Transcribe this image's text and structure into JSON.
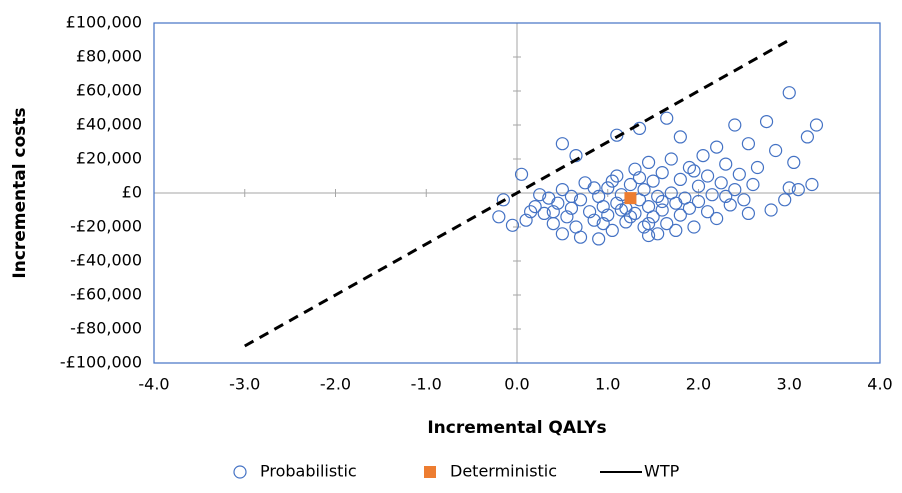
{
  "chart_data": {
    "type": "scatter",
    "x_label": "Incremental QALYs",
    "y_label": "Incremental  costs",
    "xlim": [
      -4,
      4
    ],
    "ylim": [
      -100000,
      100000
    ],
    "xticks": [
      {
        "value": -4,
        "label": "-4.0"
      },
      {
        "value": -3,
        "label": "-3.0"
      },
      {
        "value": -2,
        "label": "-2.0"
      },
      {
        "value": -1,
        "label": "-1.0"
      },
      {
        "value": 0,
        "label": "0.0"
      },
      {
        "value": 1,
        "label": "1.0"
      },
      {
        "value": 2,
        "label": "2.0"
      },
      {
        "value": 3,
        "label": "3.0"
      },
      {
        "value": 4,
        "label": "4.0"
      }
    ],
    "yticks": [
      {
        "value": -100000,
        "label": "-£100,000"
      },
      {
        "value": -80000,
        "label": "-£80,000"
      },
      {
        "value": -60000,
        "label": "-£60,000"
      },
      {
        "value": -40000,
        "label": "-£40,000"
      },
      {
        "value": -20000,
        "label": "-£20,000"
      },
      {
        "value": 0,
        "label": "£0"
      },
      {
        "value": 20000,
        "label": "£20,000"
      },
      {
        "value": 40000,
        "label": "£40,000"
      },
      {
        "value": 60000,
        "label": "£60,000"
      },
      {
        "value": 80000,
        "label": "£80,000"
      },
      {
        "value": 100000,
        "label": "£100,000"
      }
    ],
    "series": [
      {
        "name": "Probabilistic",
        "color": "#4472c4",
        "marker": "circle",
        "x": [
          3.0,
          2.75,
          3.3,
          1.35,
          1.65,
          1.1,
          2.4,
          0.5,
          0.05,
          -0.15,
          -0.2,
          -0.05,
          2.55,
          2.85,
          3.2,
          3.0,
          3.1,
          3.25,
          2.8,
          2.95,
          3.05,
          0.9,
          1.45,
          0.65,
          1.8,
          2.2,
          2.65,
          0.2,
          0.3,
          0.35,
          0.4,
          0.45,
          0.5,
          0.55,
          0.6,
          0.65,
          0.7,
          0.75,
          0.8,
          0.85,
          0.9,
          0.95,
          1.0,
          1.0,
          1.05,
          1.1,
          1.1,
          1.15,
          1.2,
          1.2,
          1.25,
          1.3,
          1.3,
          1.35,
          1.4,
          1.4,
          1.45,
          1.45,
          1.5,
          1.5,
          1.55,
          1.6,
          1.6,
          1.65,
          1.7,
          1.7,
          1.75,
          1.8,
          1.8,
          1.85,
          1.9,
          1.9,
          1.95,
          2.0,
          2.0,
          2.05,
          2.1,
          2.1,
          2.15,
          2.2,
          2.25,
          2.3,
          2.35,
          2.4,
          2.45,
          2.5,
          2.55,
          2.6,
          0.25,
          0.15,
          0.1,
          0.5,
          0.7,
          1.55,
          1.75,
          1.25,
          1.35,
          1.15,
          0.95,
          1.6,
          1.05,
          0.85,
          2.3,
          1.95,
          1.45,
          0.6,
          0.4
        ],
        "y": [
          59000,
          42000,
          40000,
          38000,
          44000,
          34000,
          40000,
          29000,
          11000,
          -4000,
          -14000,
          -19000,
          29000,
          25000,
          33000,
          3000,
          2000,
          5000,
          -10000,
          -4000,
          18000,
          -27000,
          -25000,
          22000,
          33000,
          27000,
          15000,
          -8000,
          -12000,
          -3000,
          -18000,
          -6000,
          2000,
          -14000,
          -9000,
          -20000,
          -4000,
          6000,
          -11000,
          -16000,
          -2000,
          -8000,
          3000,
          -13000,
          -22000,
          -6000,
          10000,
          -1000,
          -17000,
          -9000,
          5000,
          -12000,
          14000,
          -4000,
          -20000,
          2000,
          -8000,
          18000,
          -14000,
          7000,
          -2000,
          -10000,
          12000,
          -18000,
          0,
          20000,
          -6000,
          -13000,
          8000,
          -3000,
          15000,
          -9000,
          -20000,
          4000,
          -5000,
          22000,
          -11000,
          10000,
          -1000,
          -15000,
          6000,
          17000,
          -7000,
          2000,
          11000,
          -4000,
          -12000,
          5000,
          -1000,
          -11000,
          -16000,
          -24000,
          -26000,
          -24000,
          -22000,
          -14000,
          9000,
          -10000,
          -18000,
          -5000,
          7000,
          3000,
          -2000,
          13000,
          -18000,
          -2000,
          -11000
        ]
      },
      {
        "name": "Deterministic",
        "color": "#ed7d31",
        "marker": "square",
        "x": [
          1.25
        ],
        "y": [
          -3000
        ]
      },
      {
        "name": "WTP",
        "color": "#000000",
        "marker": "line",
        "dash": true,
        "x": [
          -3,
          3
        ],
        "y": [
          -90000,
          90000
        ]
      }
    ]
  }
}
